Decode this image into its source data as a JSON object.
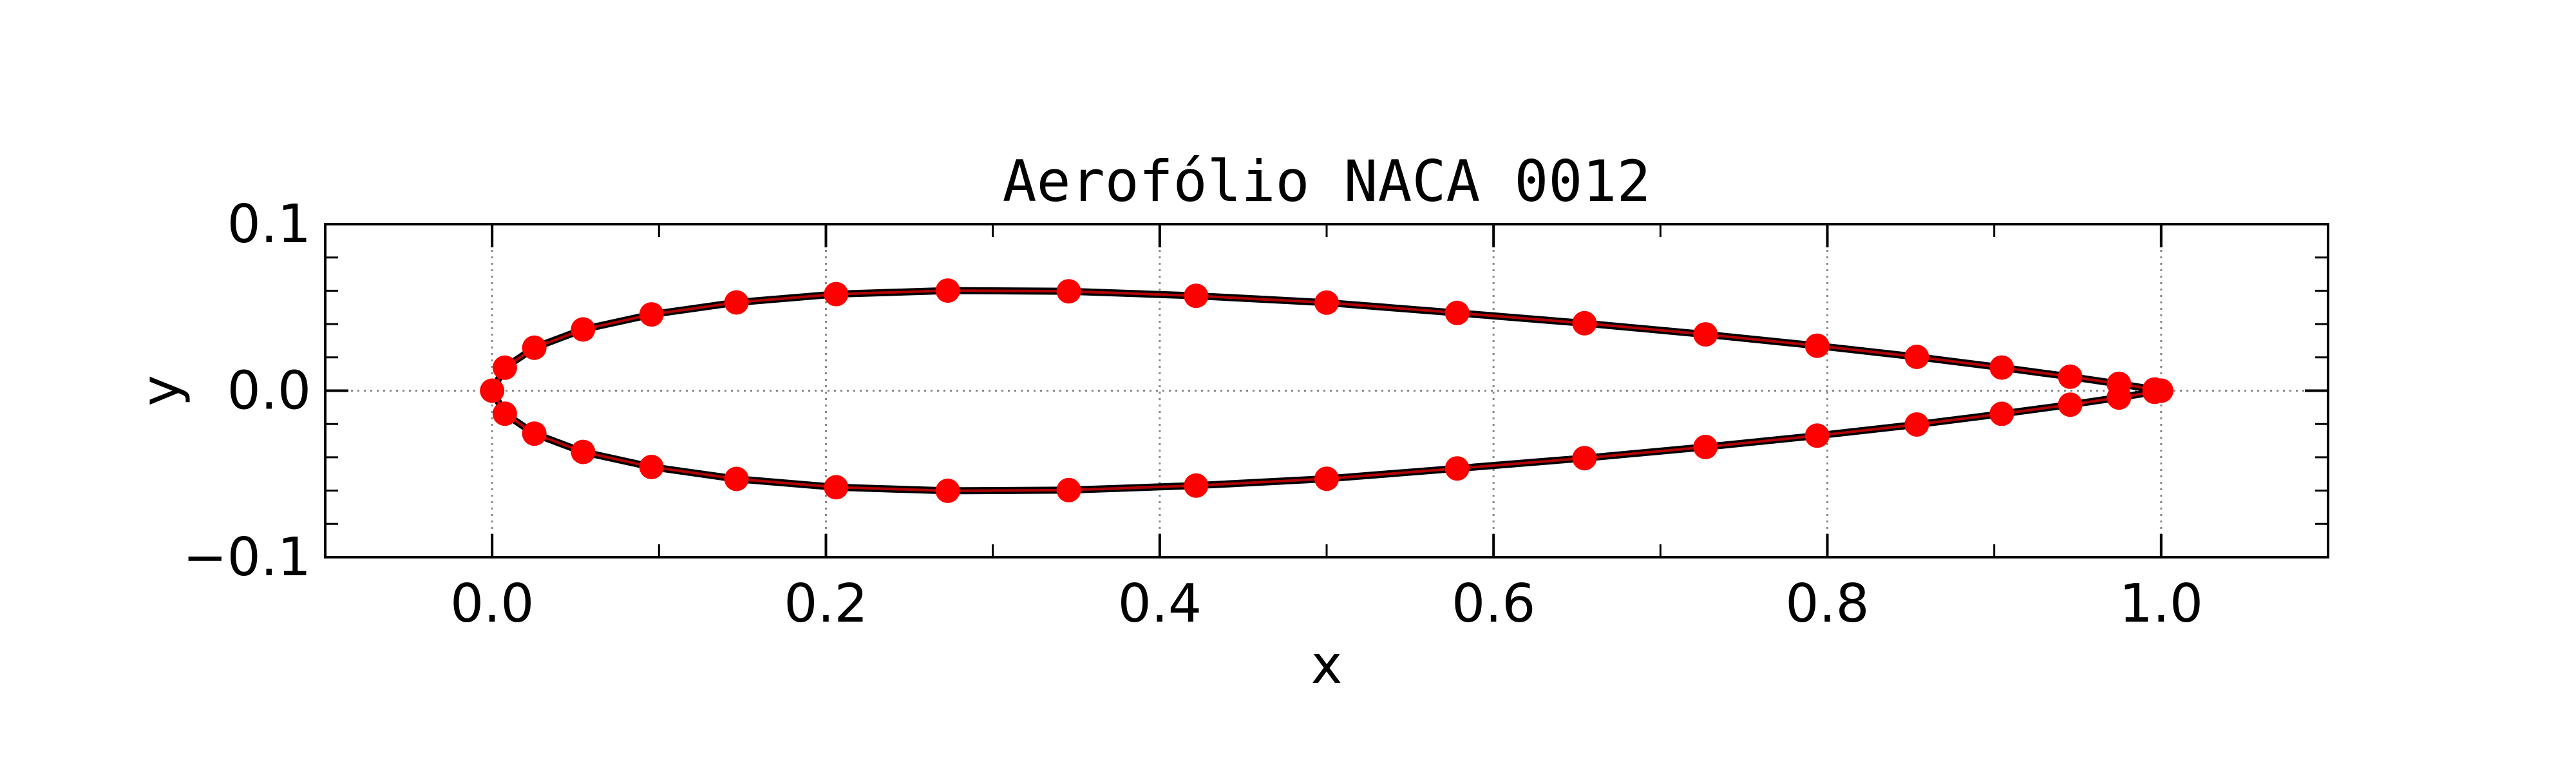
{
  "chart_data": {
    "type": "line",
    "title": "Aerofólio NACA 0012",
    "xlabel": "x",
    "ylabel": "y",
    "xlim": [
      -0.1,
      1.1
    ],
    "ylim": [
      -0.1,
      0.1
    ],
    "xticks": [
      0.0,
      0.2,
      0.4,
      0.6,
      0.8,
      1.0
    ],
    "xtick_labels": [
      "0.0",
      "0.2",
      "0.4",
      "0.6",
      "0.8",
      "1.0"
    ],
    "yticks": [
      -0.1,
      0.0,
      0.1
    ],
    "ytick_labels": [
      "−0.1",
      "0.0",
      "0.1"
    ],
    "grid": true,
    "colors": {
      "line": "#000000",
      "markers": "#ff0000"
    },
    "series": [
      {
        "style": "black solid line with red filled circle markers",
        "x": [
          1.0,
          0.9961,
          0.9747,
          0.9455,
          0.9045,
          0.8536,
          0.7939,
          0.727,
          0.6545,
          0.5782,
          0.5,
          0.4218,
          0.3455,
          0.273,
          0.2061,
          0.1464,
          0.0955,
          0.0545,
          0.0253,
          0.0076,
          0.0,
          0.0076,
          0.0253,
          0.0545,
          0.0955,
          0.1464,
          0.2061,
          0.273,
          0.3455,
          0.4218,
          0.5,
          0.5782,
          0.6545,
          0.727,
          0.7939,
          0.8536,
          0.9045,
          0.9455,
          0.9747,
          0.9961,
          1.0
        ],
        "y": [
          0.0,
          0.0007,
          0.0041,
          0.0084,
          0.0139,
          0.0203,
          0.027,
          0.0338,
          0.0405,
          0.0467,
          0.0529,
          0.057,
          0.0597,
          0.0601,
          0.058,
          0.053,
          0.0458,
          0.0368,
          0.0258,
          0.0138,
          0.0,
          -0.0138,
          -0.0258,
          -0.0368,
          -0.0458,
          -0.053,
          -0.058,
          -0.0601,
          -0.0597,
          -0.057,
          -0.0529,
          -0.0467,
          -0.0405,
          -0.0338,
          -0.027,
          -0.0203,
          -0.0139,
          -0.0084,
          -0.0041,
          -0.0007,
          0.0
        ]
      }
    ]
  }
}
